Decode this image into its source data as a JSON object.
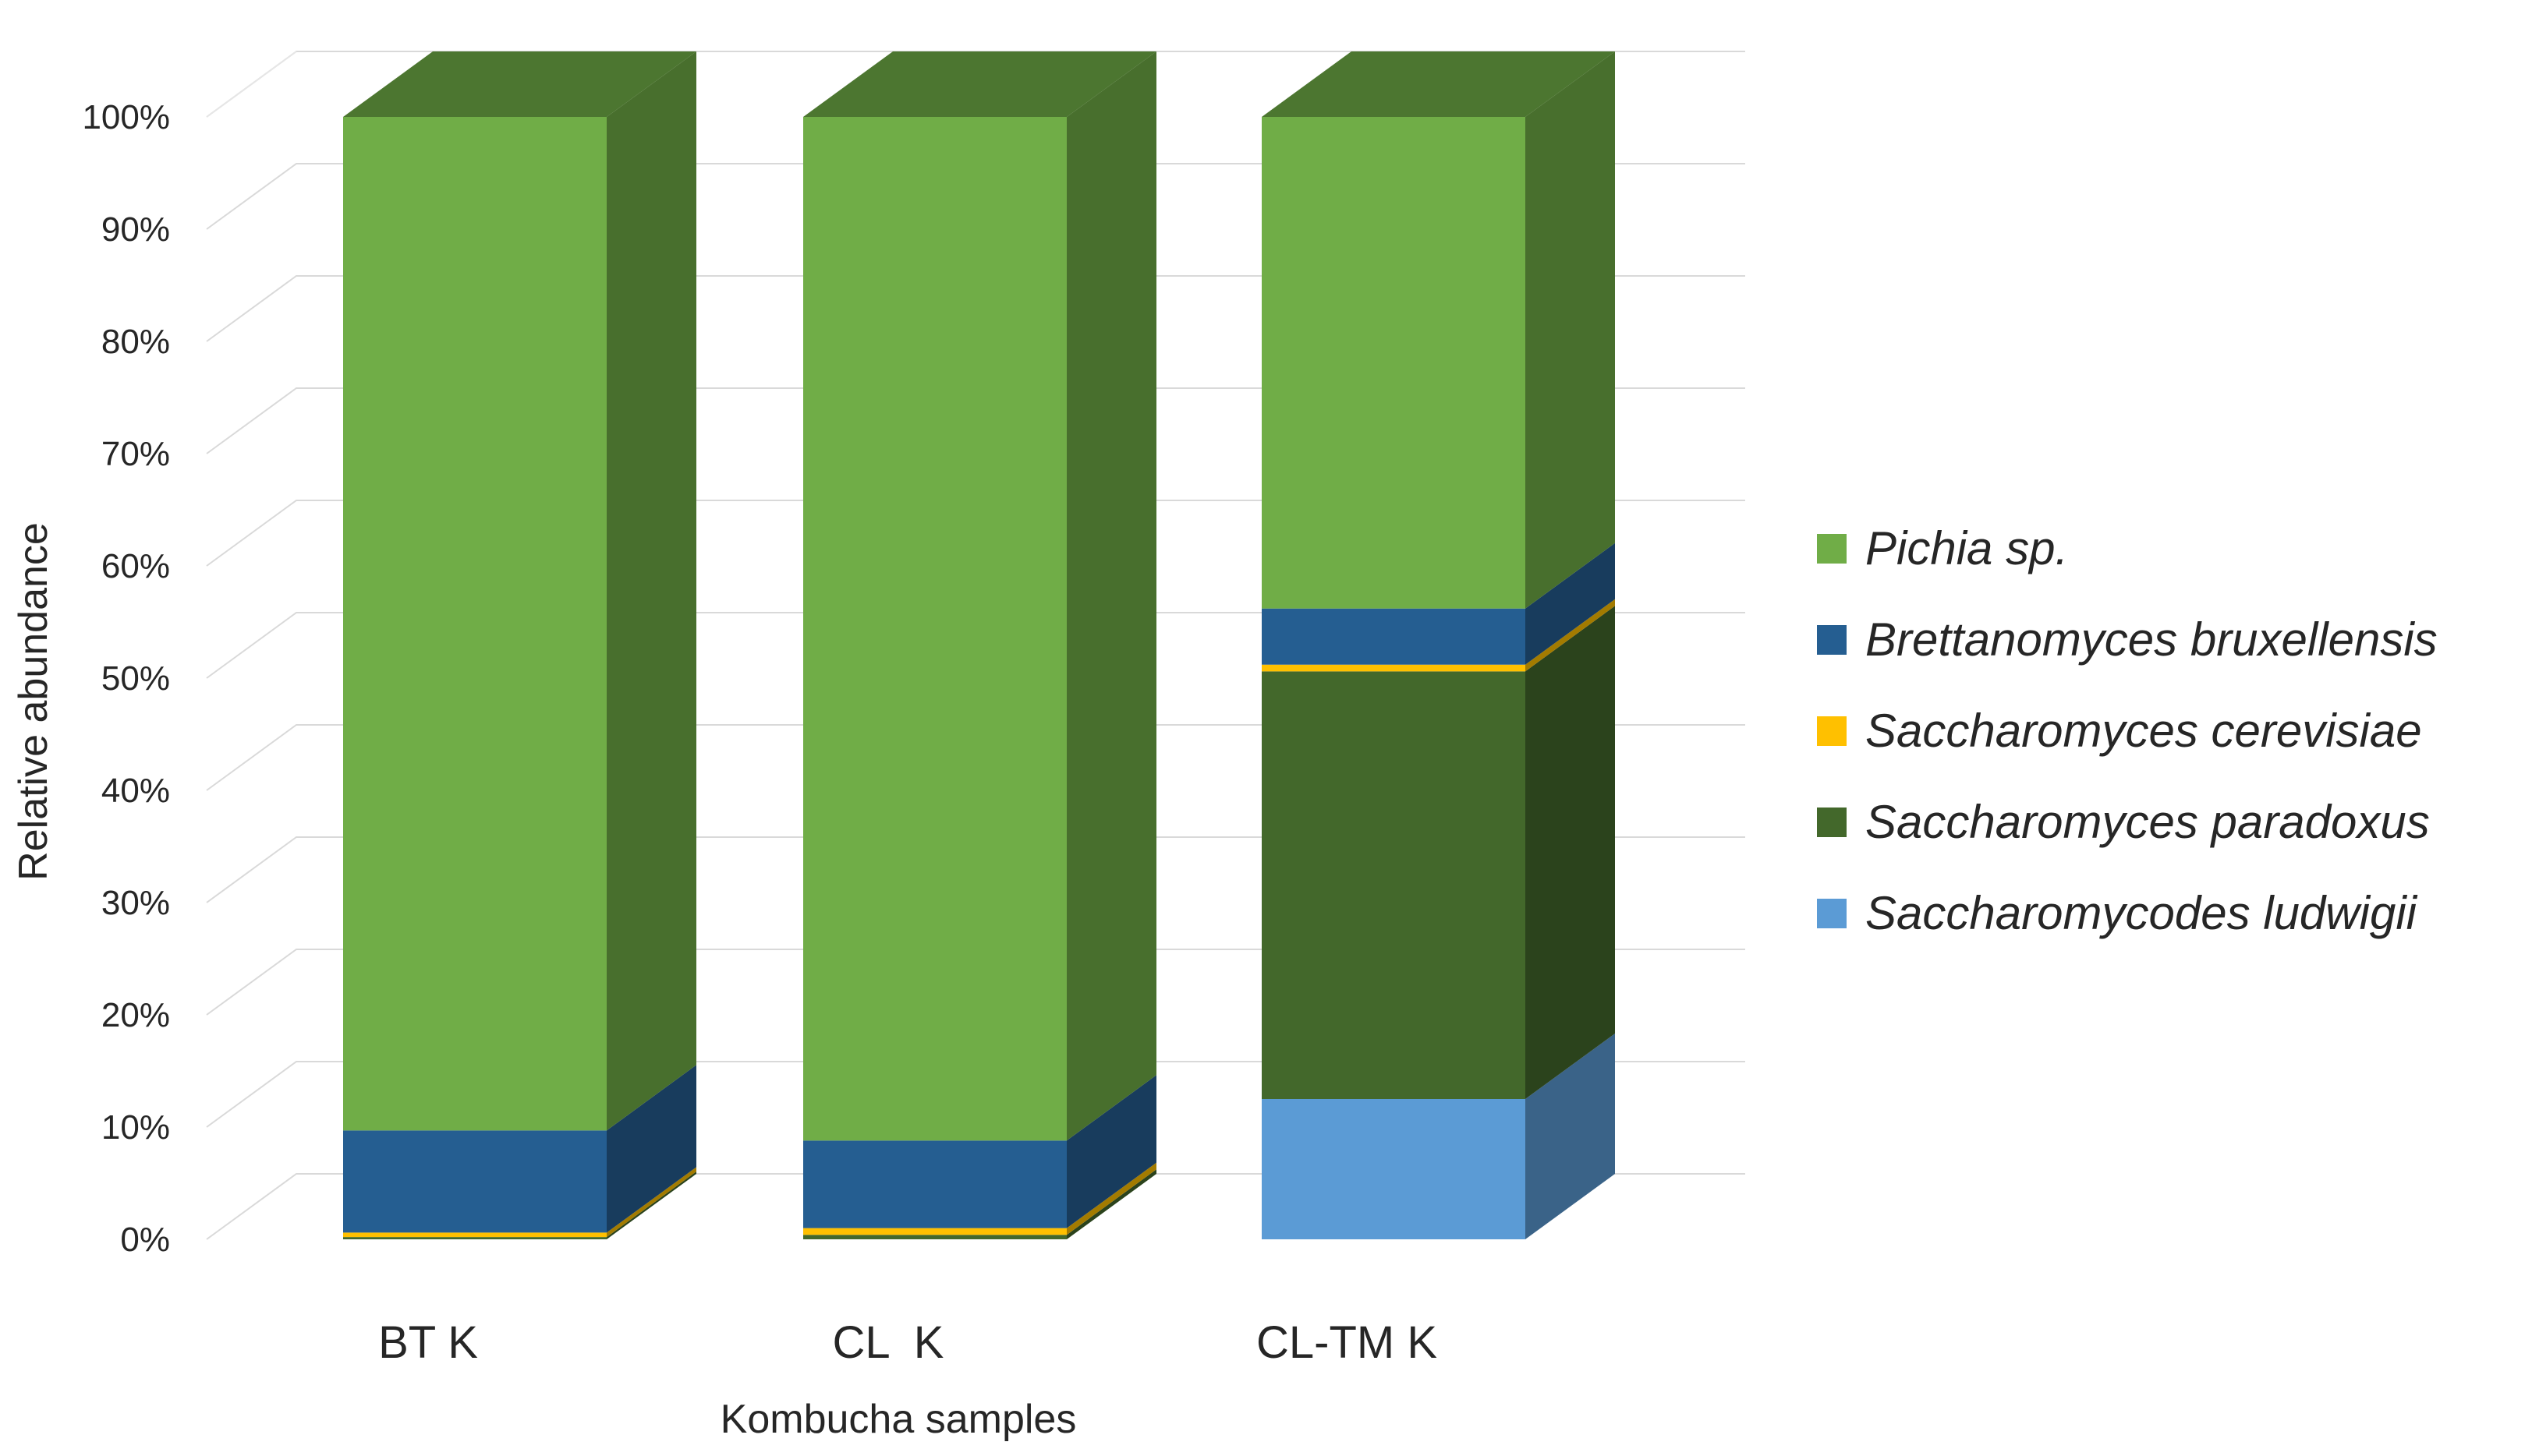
{
  "chart_data": {
    "type": "bar",
    "stacked": true,
    "style": "3d-column",
    "categories": [
      "BT K",
      "CL  K",
      "CL-TM K"
    ],
    "xlabel": "Kombucha samples",
    "ylabel": "Relative abundance",
    "ylim": [
      0,
      100
    ],
    "yticks": [
      "0%",
      "10%",
      "20%",
      "30%",
      "40%",
      "50%",
      "60%",
      "70%",
      "80%",
      "90%",
      "100%"
    ],
    "grid": true,
    "legend_position": "right",
    "series": [
      {
        "name": "Saccharomycodes ludwigii",
        "color": "#5B9BD5",
        "values": [
          0,
          0,
          12.5
        ]
      },
      {
        "name": "Saccharomyces paradoxus",
        "color": "#43682B",
        "values": [
          0.2,
          0.4,
          38.1
        ]
      },
      {
        "name": "Saccharomyces cerevisiae",
        "color": "#FFC000",
        "values": [
          0.4,
          0.6,
          0.6
        ]
      },
      {
        "name": "Brettanomyces bruxellensis",
        "color": "#255E91",
        "values": [
          9.1,
          7.8,
          5.0
        ]
      },
      {
        "name": "Pichia sp.",
        "color": "#70AD47",
        "values": [
          90.3,
          91.2,
          43.8
        ]
      }
    ]
  },
  "legend_order": [
    "Pichia sp.",
    "Brettanomyces bruxellensis",
    "Saccharomyces cerevisiae",
    "Saccharomyces paradoxus",
    "Saccharomycodes ludwigii"
  ]
}
